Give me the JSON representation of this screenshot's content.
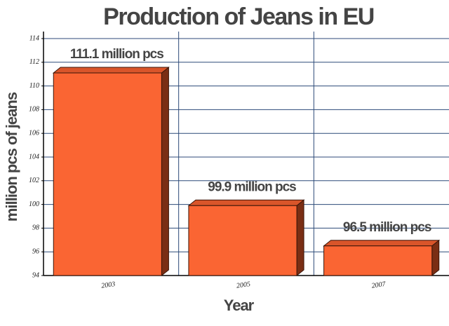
{
  "chart_data": {
    "type": "bar",
    "title": "Production of Jeans in EU",
    "x_label": "Year",
    "y_label": "million pcs of jeans",
    "categories": [
      "2003",
      "2005",
      "2007"
    ],
    "values": [
      111.1,
      99.9,
      96.5
    ],
    "value_labels": [
      "111.1 million pcs",
      "99.9 million pcs",
      "96.5 million pcs"
    ],
    "color": "#fa6533",
    "ylim": [
      94,
      114
    ],
    "yticks": [
      94,
      96,
      98,
      100,
      102,
      104,
      106,
      108,
      110,
      112,
      114
    ],
    "grid": true
  }
}
